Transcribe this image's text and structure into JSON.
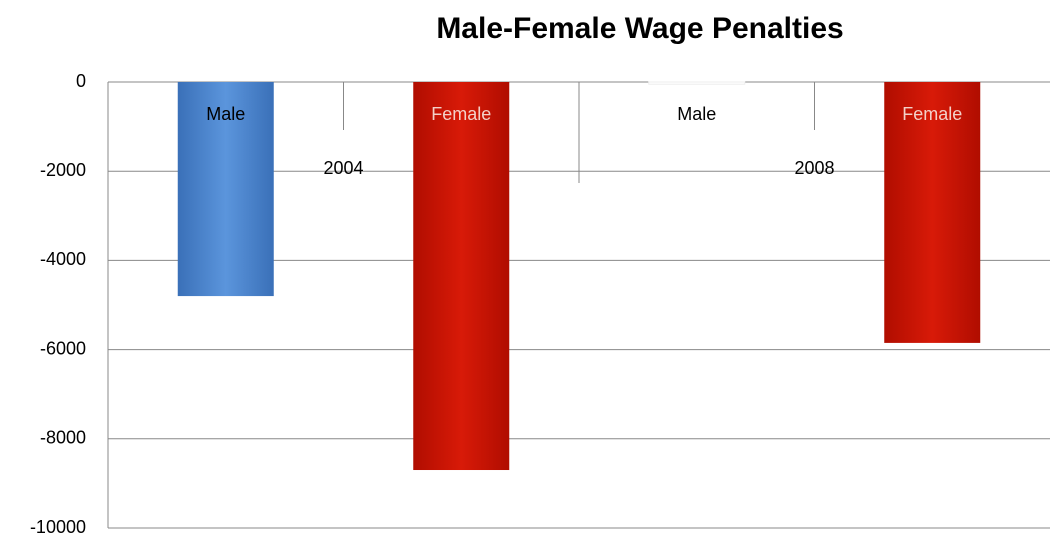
{
  "chart_data": {
    "type": "bar",
    "title": "Male-Female Wage Penalties",
    "categories": [
      "Male",
      "Female",
      "Male",
      "Female"
    ],
    "groups": [
      "2004",
      "2008"
    ],
    "values": [
      -4800,
      -8700,
      -50,
      -5850
    ],
    "colors": [
      "#4a86d0",
      "#cc1100",
      "#ffffff",
      "#cc1100"
    ],
    "ylim": [
      -10000,
      0
    ],
    "yticks": [
      0,
      -2000,
      -4000,
      -6000,
      -8000,
      -10000
    ],
    "grid": true
  }
}
